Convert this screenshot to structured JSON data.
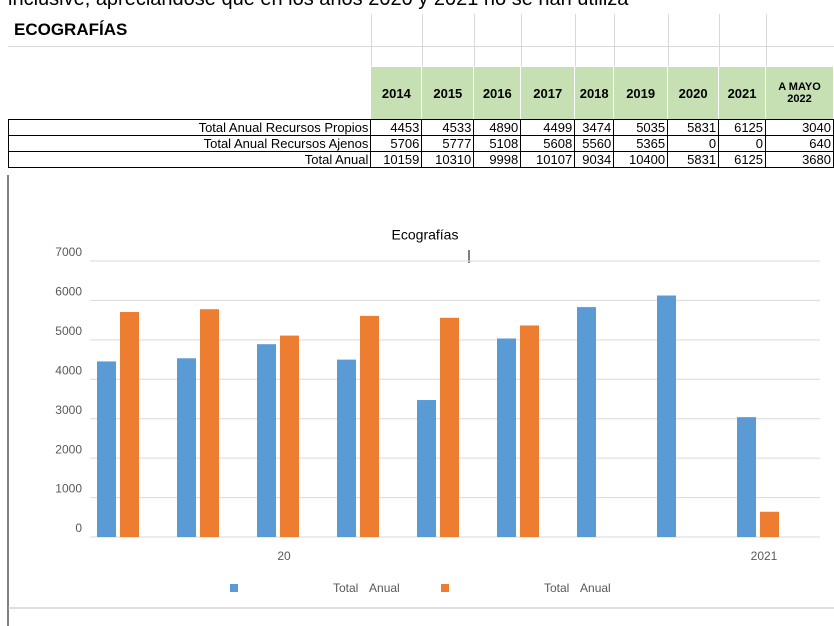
{
  "intro": "inclusive, apreciándose que en los años 2020 y 2021 no se han utiliza",
  "table": {
    "title": "ECOGRAFÍAS",
    "columns": [
      "2014",
      "2015",
      "2016",
      "2017",
      "2018",
      "2019",
      "2020",
      "2021",
      "A MAYO 2022"
    ],
    "rows": [
      {
        "label": "Total Anual Recursos Propios",
        "values": [
          4453,
          4533,
          4890,
          4499,
          3474,
          5035,
          5831,
          6125,
          3040
        ]
      },
      {
        "label": "Total Anual Recursos Ajenos",
        "values": [
          5706,
          5777,
          5108,
          5608,
          5560,
          5365,
          0,
          0,
          640
        ]
      },
      {
        "label": "Total Anual",
        "values": [
          10159,
          10310,
          9998,
          10107,
          9034,
          10400,
          5831,
          6125,
          3680
        ]
      }
    ]
  },
  "chart_data": {
    "type": "bar",
    "title": "Ecografías",
    "categories": [
      null,
      null,
      "20",
      null,
      null,
      null,
      null,
      null,
      "2021"
    ],
    "series": [
      {
        "name": "Total Anual",
        "color": "#5b9bd5",
        "values": [
          4453,
          4533,
          4890,
          4499,
          3474,
          5035,
          5831,
          6125,
          3040
        ]
      },
      {
        "name": "Total Anual",
        "color": "#ed7d31",
        "values": [
          5706,
          5777,
          5108,
          5608,
          5560,
          5365,
          0,
          0,
          640
        ]
      }
    ],
    "ylim": [
      0,
      7000
    ],
    "yticks": [
      0,
      1000,
      2000,
      3000,
      4000,
      5000,
      6000,
      7000
    ],
    "grid": true,
    "legend": "bottom"
  }
}
